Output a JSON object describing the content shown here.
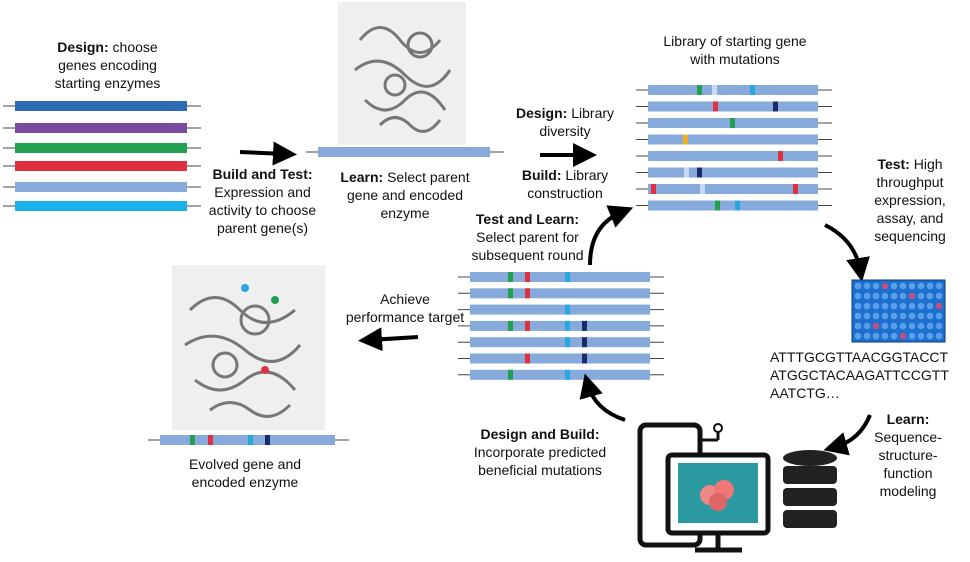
{
  "steps": [
    {
      "label": "Design:",
      "text": "choose genes encoding starting enzymes"
    },
    {
      "label": "Build and Test:",
      "text": "Expression and activity to choose parent gene(s)"
    },
    {
      "label": "Learn:",
      "text": "Select parent gene and encoded enzyme"
    },
    {
      "label": "Design:",
      "text": "Library diversity"
    },
    {
      "label": "Build:",
      "text": "Library construction"
    },
    {
      "label": "Test:",
      "text": "High throughput expression, assay, and sequencing"
    },
    {
      "label": "Learn:",
      "text": "Sequence-structure-function modeling"
    },
    {
      "label": "Design and Build:",
      "text": "Incorporate predicted beneficial mutations"
    },
    {
      "label": "Test and Learn:",
      "text": "Select parent for subsequent round"
    }
  ],
  "library_title": "Library of starting gene with mutations",
  "sequence": [
    "ATTTGCGTTAACGGTACCT",
    "ATGGCTACAAGATTCCGTT",
    "AATCTG…"
  ],
  "achieve": "Achieve performance target",
  "evolved": "Evolved gene and encoded enzyme"
}
